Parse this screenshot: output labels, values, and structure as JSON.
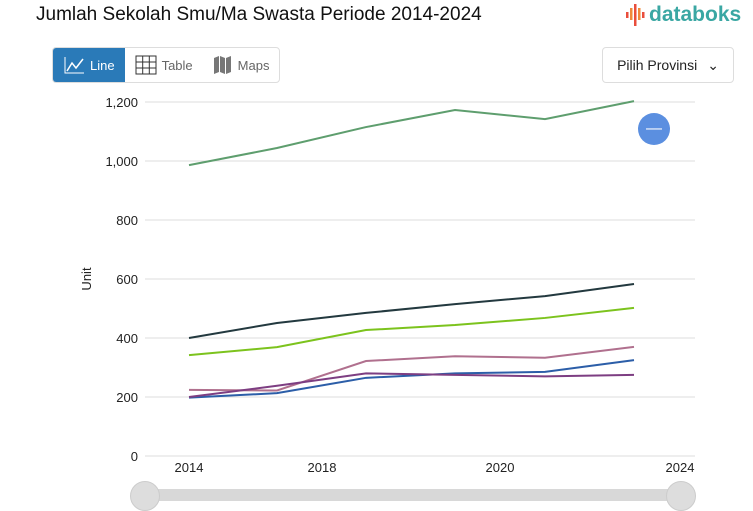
{
  "header": {
    "title": "Jumlah Sekolah Smu/Ma Swasta Periode 2014-2024",
    "logo_text": "databoks"
  },
  "toolbar": {
    "line": "Line",
    "table": "Table",
    "maps": "Maps",
    "province": "Pilih Provinsi"
  },
  "colors": {
    "accent": "#2a7ab8",
    "zoom_button": "#5b8fe0"
  },
  "chart_data": {
    "type": "line",
    "ylabel": "Unit",
    "ylim": [
      0,
      1200
    ],
    "yticks": [
      "0",
      "200",
      "400",
      "600",
      "800",
      "1,000",
      "1,200"
    ],
    "xticks": [
      "2014",
      "2018",
      "2020",
      "2024"
    ],
    "grid": true,
    "series": [
      {
        "color": "#5e9e6e",
        "values": [
          986,
          1044,
          1115,
          1173,
          1142,
          1203
        ]
      },
      {
        "color": "#23393f",
        "values": [
          400,
          451,
          485,
          515,
          542,
          583
        ]
      },
      {
        "color": "#7cc31d",
        "values": [
          342,
          369,
          427,
          444,
          468,
          502
        ]
      },
      {
        "color": "#b0708e",
        "values": [
          224,
          222,
          322,
          338,
          333,
          370
        ]
      },
      {
        "color": "#2c5ea8",
        "values": [
          198,
          213,
          265,
          280,
          285,
          325
        ]
      },
      {
        "color": "#7d3e82",
        "values": [
          200,
          238,
          280,
          275,
          270,
          275
        ]
      }
    ]
  }
}
